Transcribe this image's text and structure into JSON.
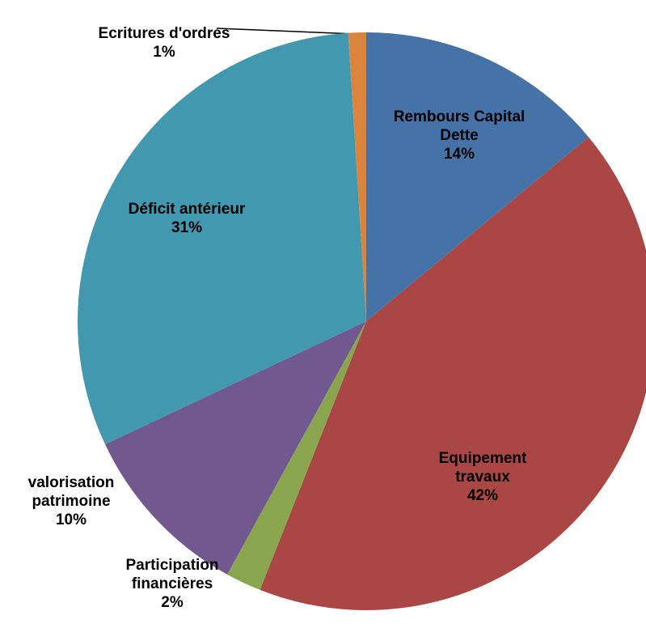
{
  "chart_data": {
    "type": "pie",
    "categories": [
      "Rembours Capital Dette",
      "Equipement travaux",
      "Participation financières",
      "valorisation patrimoine",
      "Déficit antérieur",
      "Ecritures d'ordres"
    ],
    "values": [
      14,
      42,
      2,
      10,
      31,
      1
    ],
    "value_labels": [
      "14%",
      "42%",
      "2%",
      "10%",
      "31%",
      "1%"
    ],
    "colors": [
      "#4572a7",
      "#aa4643",
      "#89a54e",
      "#71588f",
      "#4198af",
      "#db843d"
    ]
  }
}
